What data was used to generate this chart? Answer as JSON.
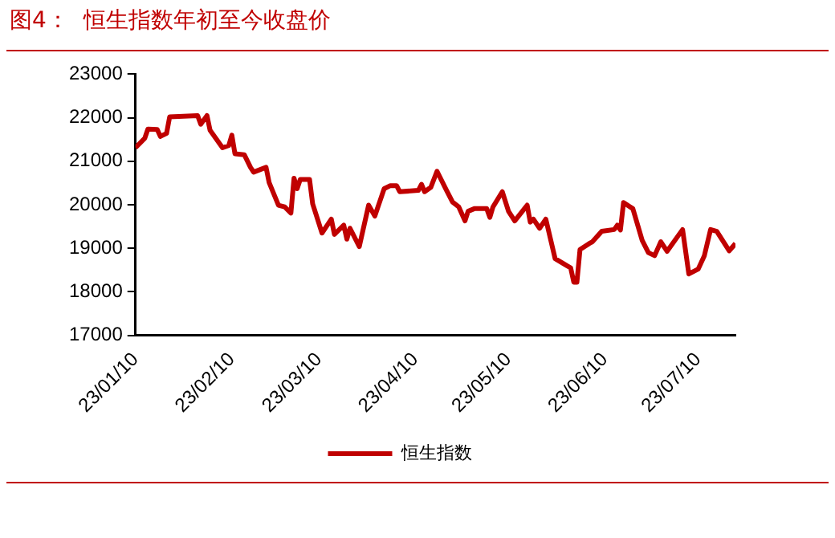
{
  "chart_data": {
    "type": "line",
    "title": "图4：  恒生指数年初至今收盘价",
    "x": [
      "--01-10",
      "--01-13",
      "--01-14",
      "--01-17",
      "--01-18",
      "--01-20",
      "--01-21",
      "--01-30",
      "--01-31",
      "--02-02",
      "--02-03",
      "--02-07",
      "--02-09",
      "--02-10",
      "--02-11",
      "--02-14",
      "--02-16",
      "--02-17",
      "--02-21",
      "--02-22",
      "--02-25",
      "--02-27",
      "--03-01",
      "--03-02",
      "--03-03",
      "--03-04",
      "--03-07",
      "--03-08",
      "--03-11",
      "--03-14",
      "--03-15",
      "--03-18",
      "--03-19",
      "--03-20",
      "--03-23",
      "--03-26",
      "--03-28",
      "--03-31",
      "--04-02",
      "--04-04",
      "--04-05",
      "--04-11",
      "--04-12",
      "--04-13",
      "--04-15",
      "--04-17",
      "--04-20",
      "--04-22",
      "--04-24",
      "--04-26",
      "--04-27",
      "--04-29",
      "--05-03",
      "--05-04",
      "--05-05",
      "--05-08",
      "--05-10",
      "--05-12",
      "--05-16",
      "--05-17",
      "--05-18",
      "--05-20",
      "--05-22",
      "--05-25",
      "--05-29",
      "--05-30",
      "--05-31",
      "--06-01",
      "--06-02",
      "--06-05",
      "--06-06",
      "--06-09",
      "--06-13",
      "--06-14",
      "--06-15",
      "--06-16",
      "--06-19",
      "--06-22",
      "--06-24",
      "--06-26",
      "--06-28",
      "--06-30",
      "--07-05",
      "--07-07",
      "--07-10",
      "--07-12",
      "--07-14",
      "--07-16",
      "--07-20",
      "--07-22"
    ],
    "series": [
      {
        "name": "恒生指数",
        "color": "#c00000",
        "values": [
          21310,
          21530,
          21740,
          21730,
          21570,
          21640,
          22020,
          22050,
          21850,
          22050,
          21710,
          21310,
          21360,
          21600,
          21170,
          21150,
          20860,
          20750,
          20860,
          20510,
          19990,
          19950,
          19810,
          20610,
          20370,
          20580,
          20580,
          20020,
          19350,
          19670,
          19320,
          19530,
          19210,
          19460,
          19040,
          19990,
          19740,
          20370,
          20440,
          20440,
          20300,
          20330,
          20470,
          20300,
          20400,
          20770,
          20340,
          20060,
          19950,
          19630,
          19850,
          19910,
          19910,
          19710,
          19950,
          20300,
          19850,
          19630,
          19990,
          19600,
          19670,
          19460,
          19670,
          18760,
          18590,
          18550,
          18220,
          18220,
          18970,
          19110,
          19150,
          19390,
          19430,
          19530,
          19420,
          20050,
          19910,
          19180,
          18900,
          18830,
          19150,
          18930,
          19430,
          18410,
          18520,
          18830,
          19430,
          19390,
          18940,
          19110
        ]
      }
    ],
    "xlim": [
      "--01-10",
      "--07-22"
    ],
    "xticks": [
      {
        "value": "--01-10",
        "label": "23/01/10"
      },
      {
        "value": "--02-10",
        "label": "23/02/10"
      },
      {
        "value": "--03-10",
        "label": "23/03/10"
      },
      {
        "value": "--04-10",
        "label": "23/04/10"
      },
      {
        "value": "--05-10",
        "label": "23/05/10"
      },
      {
        "value": "--06-10",
        "label": "23/06/10"
      },
      {
        "value": "--07-10",
        "label": "23/07/10"
      }
    ],
    "ylim": [
      17000,
      23000
    ],
    "yticks": [
      17000,
      18000,
      19000,
      20000,
      21000,
      22000,
      23000
    ],
    "grid": false,
    "legend": "bottom",
    "marker": "none",
    "line_style": "solid"
  }
}
